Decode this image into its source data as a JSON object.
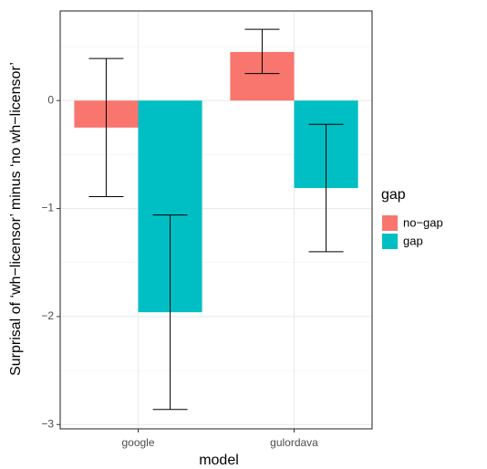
{
  "chart_data": {
    "type": "bar",
    "x_label": "model",
    "y_label": "Surprisal of ‘wh−licensor’ minus ‘no wh−licensor’",
    "categories": [
      "google",
      "gulordava"
    ],
    "legend_title": "gap",
    "series": [
      {
        "name": "no−gap",
        "color": "#F8766D",
        "values": [
          -0.25,
          0.45
        ],
        "error_low": [
          -0.89,
          0.25
        ],
        "error_high": [
          0.39,
          0.66
        ]
      },
      {
        "name": "gap",
        "color": "#00BFC4",
        "values": [
          -1.96,
          -0.81
        ],
        "error_low": [
          -2.86,
          -1.4
        ],
        "error_high": [
          -1.06,
          -0.22
        ]
      }
    ],
    "ylim": [
      -3.04,
      0.83
    ],
    "yticks": [
      {
        "value": -3,
        "label": "−3"
      },
      {
        "value": -2,
        "label": "−2"
      },
      {
        "value": -1,
        "label": "−1"
      },
      0
    ],
    "minor_yticks": [
      -2.5,
      -1.5,
      -0.5,
      0.5
    ],
    "grid": true,
    "legend_position": "right"
  }
}
